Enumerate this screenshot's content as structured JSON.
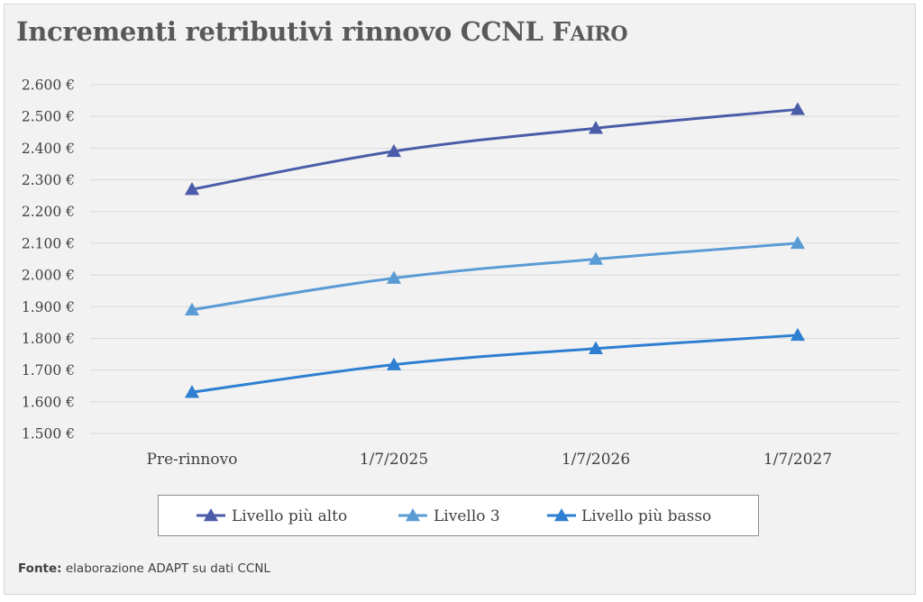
{
  "title": {
    "main": "Incrementi retributivi rinnovo CCNL F",
    "tail": "AIRO"
  },
  "source": {
    "label": "Fonte:",
    "text": "elaborazione ADAPT su dati CCNL"
  },
  "chart_data": {
    "type": "line",
    "title": "Incrementi retributivi rinnovo CCNL FAIRO",
    "categories": [
      "Pre-rinnovo",
      "1/7/2025",
      "1/7/2026",
      "1/7/2027"
    ],
    "ylim": [
      1500,
      2600
    ],
    "ytick_step": 100,
    "ytick_labels": [
      "1.500 €",
      "1.600 €",
      "1.700 €",
      "1.800 €",
      "1.900 €",
      "2.000 €",
      "2.100 €",
      "2.200 €",
      "2.300 €",
      "2.400 €",
      "2.500 €",
      "2.600 €"
    ],
    "grid": true,
    "legend_position": "bottom",
    "series": [
      {
        "name": "Livello più alto",
        "values": [
          2270,
          2390,
          2463,
          2522
        ],
        "color": "#4a5ca8",
        "marker": "triangle"
      },
      {
        "name": "Livello 3",
        "values": [
          1890,
          1990,
          2050,
          2100
        ],
        "color": "#5b9bd5",
        "marker": "triangle"
      },
      {
        "name": "Livello più basso",
        "values": [
          1630,
          1717,
          1768,
          1810
        ],
        "color": "#2e7fd1",
        "marker": "triangle"
      }
    ]
  }
}
